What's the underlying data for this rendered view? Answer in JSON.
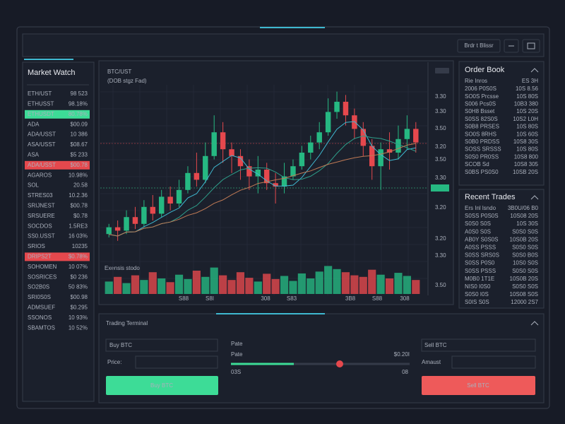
{
  "top_bar": {
    "button": "Brdr t Blissr"
  },
  "market_watch": {
    "title": "Market Watch",
    "rows": [
      {
        "name": "ETH/UST",
        "value": "98 523",
        "color": "#aab0bc"
      },
      {
        "name": "ETHUSST",
        "value": "98.18%",
        "color": "#3ddc97"
      },
      {
        "name": "ETHUSDT",
        "value": "80.78%",
        "color": "#0e2a1e",
        "highlight": "#3ddc97"
      },
      {
        "name": "ADA",
        "value": "$00.09",
        "color": "#3ddc97"
      },
      {
        "name": "ADA/USST",
        "value": "10 386",
        "color": "#aab0bc"
      },
      {
        "name": "ASA/USST",
        "value": "$08.67",
        "color": "#3ddc97"
      },
      {
        "name": "ASA",
        "value": "$5 233",
        "color": "#aab0bc"
      },
      {
        "name": "ADA/USST",
        "value": "$00.78",
        "color": "#ffffff",
        "highlight": "#e5484d"
      },
      {
        "name": "AGAROS",
        "value": "10.98%",
        "color": "#e5484d"
      },
      {
        "name": "SOL",
        "value": "20.58",
        "color": "#aab0bc"
      },
      {
        "name": "STRES03",
        "value": "10.2.36",
        "color": "#aab0bc"
      },
      {
        "name": "SRIJNEST",
        "value": "$00.78",
        "color": "#3ddc97"
      },
      {
        "name": "SRSUERE",
        "value": "$0.78",
        "color": "#3ddc97"
      },
      {
        "name": "SOCDOS",
        "value": "1.5RE3",
        "color": "#aab0bc"
      },
      {
        "name": "SS0.USST",
        "value": "16 03%",
        "color": "#e5484d"
      },
      {
        "name": "SRIOS",
        "value": "10235",
        "color": "#aab0bc"
      },
      {
        "name": "DRIPS2T",
        "value": "$0.78%",
        "color": "#ffffff",
        "highlight": "#e5484d"
      },
      {
        "name": "SOHOMEN",
        "value": "10 07%",
        "color": "#e5484d"
      },
      {
        "name": "SOSRICES",
        "value": "$0 236",
        "color": "#3ddc97"
      },
      {
        "name": "SO2B0S",
        "value": "50 83%",
        "color": "#e5484d"
      },
      {
        "name": "SRI0S0S",
        "value": "$00.98",
        "color": "#3ddc97"
      },
      {
        "name": "ADMSUEF",
        "value": "$0.295",
        "color": "#aab0bc"
      },
      {
        "name": "SSONOS",
        "value": "10 93%",
        "color": "#e5484d"
      },
      {
        "name": "SBAMTOS",
        "value": "10 52%",
        "color": "#e5484d"
      }
    ]
  },
  "chart_data": {
    "type": "candlestick",
    "title": "BTC/UST",
    "subtitle": "(DOB stgz Fad)",
    "volume_label": "Exensis stodo",
    "ylim": [
      0,
      100
    ],
    "volume_lim": [
      0,
      100
    ],
    "up_color": "#26b882",
    "down_color": "#e5484d",
    "candles": [
      [
        12,
        16,
        18,
        10
      ],
      [
        16,
        14,
        20,
        8
      ],
      [
        14,
        22,
        26,
        12
      ],
      [
        22,
        18,
        28,
        15
      ],
      [
        18,
        28,
        32,
        16
      ],
      [
        28,
        24,
        35,
        20
      ],
      [
        24,
        34,
        38,
        22
      ],
      [
        34,
        30,
        40,
        26
      ],
      [
        30,
        38,
        44,
        28
      ],
      [
        38,
        48,
        52,
        36
      ],
      [
        48,
        44,
        60,
        40
      ],
      [
        44,
        58,
        66,
        42
      ],
      [
        58,
        72,
        82,
        56
      ],
      [
        72,
        62,
        78,
        54
      ],
      [
        62,
        58,
        66,
        48
      ],
      [
        58,
        52,
        62,
        44
      ],
      [
        52,
        46,
        56,
        38
      ],
      [
        46,
        50,
        58,
        36
      ],
      [
        50,
        42,
        54,
        38
      ],
      [
        42,
        40,
        48,
        30
      ],
      [
        40,
        46,
        54,
        36
      ],
      [
        46,
        52,
        56,
        44
      ],
      [
        52,
        60,
        64,
        50
      ],
      [
        60,
        66,
        70,
        56
      ],
      [
        66,
        72,
        78,
        62
      ],
      [
        72,
        84,
        92,
        70
      ],
      [
        84,
        90,
        96,
        80
      ],
      [
        90,
        82,
        94,
        76
      ],
      [
        82,
        74,
        86,
        68
      ],
      [
        74,
        64,
        78,
        58
      ],
      [
        64,
        52,
        68,
        44
      ],
      [
        52,
        62,
        66,
        38
      ],
      [
        62,
        60,
        72,
        50
      ],
      [
        60,
        68,
        76,
        56
      ],
      [
        68,
        74,
        82,
        62
      ],
      [
        74,
        66,
        78,
        60
      ]
    ],
    "volumes": [
      40,
      55,
      35,
      60,
      45,
      70,
      50,
      38,
      62,
      48,
      75,
      55,
      85,
      60,
      45,
      70,
      52,
      40,
      65,
      48,
      58,
      42,
      66,
      50,
      72,
      90,
      80,
      70,
      60,
      55,
      78,
      62,
      50,
      68,
      58,
      45
    ],
    "yaxis_labels": [
      "3.30",
      "3.30",
      "3.50",
      "3.20",
      "3.50",
      "3.30",
      "3.20",
      "3.20",
      "3.30",
      "3.50"
    ],
    "xaxis_labels": [
      "S88",
      "S8I",
      "308",
      "S83",
      "3B8",
      "S88",
      "308"
    ]
  },
  "order_book": {
    "title": "Order Book",
    "header": [
      "Rie Inros",
      "ES 3H"
    ],
    "rows": [
      [
        "2006 P0S0S",
        "10S 8.56",
        "#e5484d"
      ],
      [
        "SO0S Prcsse",
        "10S 80S",
        "#e5484d"
      ],
      [
        "S006 Pcs0S",
        "10B3 380",
        "#e5484d"
      ],
      [
        "S0H8 Bsset",
        "10S 20S",
        "#aab0bc"
      ],
      [
        "S0SS 82S0S",
        "10S2 L0H",
        "#3ddc97"
      ],
      [
        "S0B8 PRSES",
        "10S 80S",
        "#e5484d"
      ],
      [
        "SO0S 8RHS",
        "10S 60S",
        "#aab0bc"
      ],
      [
        "S0B0 PRDSS",
        "10S8 30S",
        "#e5484d"
      ],
      [
        "SOSS SRSSS",
        "10S 80S",
        "#e5484d"
      ],
      [
        "S0S0 PR0SS",
        "10S8 800",
        "#e5484d"
      ],
      [
        "SCOB Sd",
        "10S8 305",
        "#e5484d"
      ],
      [
        "S0BS PS0S0",
        "10SB 20S",
        "#aab0bc"
      ]
    ]
  },
  "recent_trades": {
    "title": "Recent Trades",
    "header": [
      "Ers Inl lsndo",
      "3B0U/06 B0"
    ],
    "rows": [
      [
        "S0SS P0S0S",
        "10S08 20S",
        "#aab0bc"
      ],
      [
        "S0S0 S0S",
        "10S 30S",
        "#aab0bc"
      ],
      [
        "A0S0 S0S",
        "S0S0 S0S",
        "#e5484d"
      ],
      [
        "AB0Y S0S0S",
        "10S0B 20S",
        "#aab0bc"
      ],
      [
        "A0SS PSSS",
        "S0S0 S0S",
        "#aab0bc"
      ],
      [
        "S0SS SRS0S",
        "S0S0 B0S",
        "#3ddc97"
      ],
      [
        "S0SS P0S0",
        "10S0 S0S",
        "#aab0bc"
      ],
      [
        "S0SS PSSS",
        "S0S0 S0S",
        "#3ddc97"
      ],
      [
        "M0B0 1T1E",
        "10S0B 20S",
        "#aab0bc"
      ],
      [
        "NIS0 I0S0",
        "S0S0 S0S",
        "#aab0bc"
      ],
      [
        "S0S0 I0S",
        "10S08 S0S",
        "#aab0bc"
      ],
      [
        "S0IS S0S",
        "12000 2S7",
        "#aab0bc"
      ]
    ]
  },
  "trading_terminal": {
    "title": "Trading Terminal",
    "buy_input": "Buy BTC",
    "price_label": "Price:",
    "buy_button": "Buy BTC",
    "slider_caption": "Pate",
    "slider_label": "Pate",
    "slider_value": "$0.20I",
    "slider_min": "03S",
    "slider_max": "08",
    "sell_input": "Sell BTC",
    "amount_label": "Amaust",
    "sell_button": "Sell BTC"
  }
}
